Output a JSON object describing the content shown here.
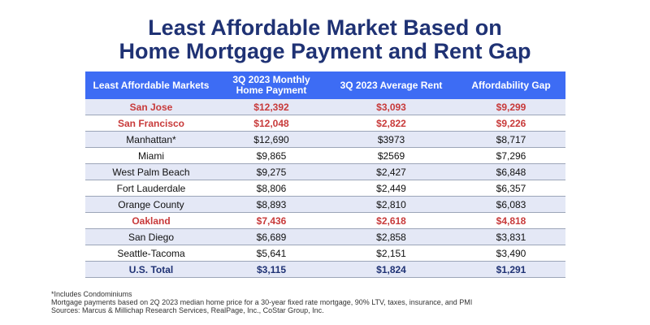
{
  "title": {
    "line1": "Least Affordable Market Based on",
    "line2": "Home Mortgage Payment and Rent Gap"
  },
  "table": {
    "headers": [
      "Least Affordable Markets",
      "3Q 2023 Monthly\nHome Payment",
      "3Q 2023 Average Rent",
      "Affordability Gap"
    ],
    "rows": [
      {
        "market": "San Jose",
        "payment": "$12,392",
        "rent": "$3,093",
        "gap": "$9,299",
        "highlight": true
      },
      {
        "market": "San Francisco",
        "payment": "$12,048",
        "rent": "$2,822",
        "gap": "$9,226",
        "highlight": true
      },
      {
        "market": "Manhattan*",
        "payment": "$12,690",
        "rent": "$3973",
        "gap": "$8,717",
        "highlight": false
      },
      {
        "market": "Miami",
        "payment": "$9,865",
        "rent": "$2569",
        "gap": "$7,296",
        "highlight": false
      },
      {
        "market": "West Palm Beach",
        "payment": "$9,275",
        "rent": "$2,427",
        "gap": "$6,848",
        "highlight": false
      },
      {
        "market": "Fort Lauderdale",
        "payment": "$8,806",
        "rent": "$2,449",
        "gap": "$6,357",
        "highlight": false
      },
      {
        "market": "Orange County",
        "payment": "$8,893",
        "rent": "$2,810",
        "gap": "$6,083",
        "highlight": false
      },
      {
        "market": "Oakland",
        "payment": "$7,436",
        "rent": "$2,618",
        "gap": "$4,818",
        "highlight": true
      },
      {
        "market": "San Diego",
        "payment": "$6,689",
        "rent": "$2,858",
        "gap": "$3,831",
        "highlight": false
      },
      {
        "market": "Seattle-Tacoma",
        "payment": "$5,641",
        "rent": "$2,151",
        "gap": "$3,490",
        "highlight": false
      }
    ],
    "total": {
      "market": "U.S. Total",
      "payment": "$3,115",
      "rent": "$1,824",
      "gap": "$1,291"
    }
  },
  "colors": {
    "title": "#1f3274",
    "header_bg": "#3d6cf4",
    "highlight_text": "#c83a3a",
    "stripe": "#e4e8f6"
  },
  "footnotes": [
    "*Includes Condominiums",
    "Mortgage payments based on 2Q 2023 median home price for a 30-year fixed rate mortgage, 90% LTV, taxes, insurance, and PMI",
    "Sources: Marcus & Millichap Research Services, RealPage, Inc., CoStar Group, Inc."
  ]
}
